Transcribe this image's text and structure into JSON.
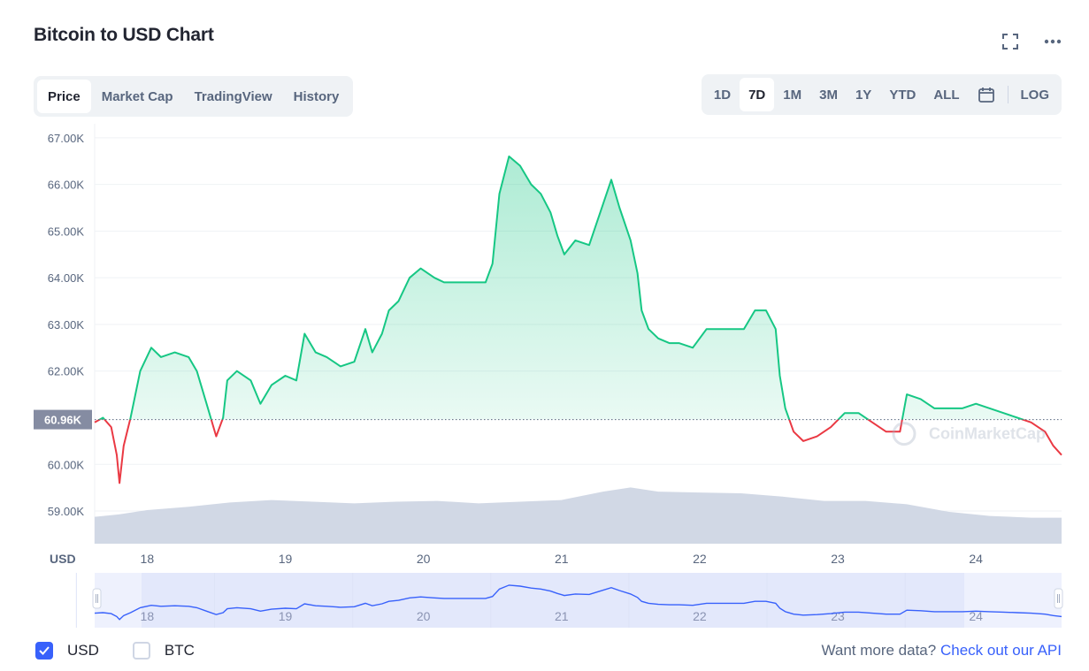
{
  "title": "Bitcoin to USD Chart",
  "tabs": [
    {
      "label": "Price",
      "active": true
    },
    {
      "label": "Market Cap",
      "active": false
    },
    {
      "label": "TradingView",
      "active": false
    },
    {
      "label": "History",
      "active": false
    }
  ],
  "ranges": [
    {
      "label": "1D",
      "active": false
    },
    {
      "label": "7D",
      "active": true
    },
    {
      "label": "1M",
      "active": false
    },
    {
      "label": "3M",
      "active": false
    },
    {
      "label": "1Y",
      "active": false
    },
    {
      "label": "YTD",
      "active": false
    },
    {
      "label": "ALL",
      "active": false
    }
  ],
  "log_label": "LOG",
  "icons": {
    "fullscreen": "fullscreen-icon",
    "more": "more-horizontal-icon",
    "calendar": "calendar-icon"
  },
  "colors": {
    "up": "#16c784",
    "down": "#ea3943",
    "volume": "#cfd6e4",
    "brush": "#3861fb",
    "accent": "#3861fb"
  },
  "chart_data": {
    "type": "area",
    "ylim": [
      58300,
      67300
    ],
    "yticks": [
      "67.00K",
      "66.00K",
      "65.00K",
      "64.00K",
      "63.00K",
      "62.00K",
      "60.00K",
      "59.00K"
    ],
    "ytick_values": [
      67000,
      66000,
      65000,
      64000,
      63000,
      62000,
      60000,
      59000
    ],
    "baseline": 60960,
    "baseline_label": "60.96K",
    "xlim": [
      17.62,
      24.62
    ],
    "x_unit": "day",
    "xticks": [
      "18",
      "19",
      "20",
      "21",
      "22",
      "23",
      "24"
    ],
    "xtick_values": [
      18,
      19,
      20,
      21,
      22,
      23,
      24
    ],
    "currency_label": "USD",
    "watermark": "CoinMarketCap",
    "price_points": [
      [
        17.62,
        60900
      ],
      [
        17.68,
        61000
      ],
      [
        17.74,
        60800
      ],
      [
        17.78,
        60200
      ],
      [
        17.8,
        59600
      ],
      [
        17.83,
        60400
      ],
      [
        17.88,
        61000
      ],
      [
        17.95,
        62000
      ],
      [
        18.03,
        62500
      ],
      [
        18.1,
        62300
      ],
      [
        18.2,
        62400
      ],
      [
        18.3,
        62300
      ],
      [
        18.36,
        62000
      ],
      [
        18.43,
        61300
      ],
      [
        18.5,
        60600
      ],
      [
        18.55,
        61000
      ],
      [
        18.58,
        61800
      ],
      [
        18.65,
        62000
      ],
      [
        18.75,
        61800
      ],
      [
        18.82,
        61300
      ],
      [
        18.9,
        61700
      ],
      [
        19.0,
        61900
      ],
      [
        19.08,
        61800
      ],
      [
        19.14,
        62800
      ],
      [
        19.22,
        62400
      ],
      [
        19.3,
        62300
      ],
      [
        19.4,
        62100
      ],
      [
        19.5,
        62200
      ],
      [
        19.58,
        62900
      ],
      [
        19.63,
        62400
      ],
      [
        19.7,
        62800
      ],
      [
        19.75,
        63300
      ],
      [
        19.82,
        63500
      ],
      [
        19.9,
        64000
      ],
      [
        19.98,
        64200
      ],
      [
        20.08,
        64000
      ],
      [
        20.15,
        63900
      ],
      [
        20.25,
        63900
      ],
      [
        20.35,
        63900
      ],
      [
        20.45,
        63900
      ],
      [
        20.5,
        64300
      ],
      [
        20.55,
        65800
      ],
      [
        20.62,
        66600
      ],
      [
        20.7,
        66400
      ],
      [
        20.78,
        66000
      ],
      [
        20.85,
        65800
      ],
      [
        20.92,
        65400
      ],
      [
        20.97,
        64900
      ],
      [
        21.02,
        64500
      ],
      [
        21.1,
        64800
      ],
      [
        21.2,
        64700
      ],
      [
        21.28,
        65400
      ],
      [
        21.36,
        66100
      ],
      [
        21.42,
        65500
      ],
      [
        21.5,
        64800
      ],
      [
        21.55,
        64100
      ],
      [
        21.58,
        63300
      ],
      [
        21.63,
        62900
      ],
      [
        21.7,
        62700
      ],
      [
        21.78,
        62600
      ],
      [
        21.85,
        62600
      ],
      [
        21.95,
        62500
      ],
      [
        22.05,
        62900
      ],
      [
        22.15,
        62900
      ],
      [
        22.25,
        62900
      ],
      [
        22.32,
        62900
      ],
      [
        22.4,
        63300
      ],
      [
        22.48,
        63300
      ],
      [
        22.55,
        62900
      ],
      [
        22.58,
        61900
      ],
      [
        22.62,
        61200
      ],
      [
        22.68,
        60700
      ],
      [
        22.75,
        60500
      ],
      [
        22.85,
        60600
      ],
      [
        22.95,
        60800
      ],
      [
        23.05,
        61100
      ],
      [
        23.15,
        61100
      ],
      [
        23.25,
        60900
      ],
      [
        23.35,
        60700
      ],
      [
        23.45,
        60700
      ],
      [
        23.5,
        61500
      ],
      [
        23.6,
        61400
      ],
      [
        23.7,
        61200
      ],
      [
        23.8,
        61200
      ],
      [
        23.9,
        61200
      ],
      [
        24.0,
        61300
      ],
      [
        24.1,
        61200
      ],
      [
        24.2,
        61100
      ],
      [
        24.3,
        61000
      ],
      [
        24.4,
        60900
      ],
      [
        24.5,
        60700
      ],
      [
        24.56,
        60400
      ],
      [
        24.62,
        60200
      ]
    ],
    "volume_relative": [
      [
        17.62,
        0.32
      ],
      [
        17.8,
        0.35
      ],
      [
        18.0,
        0.4
      ],
      [
        18.3,
        0.44
      ],
      [
        18.6,
        0.49
      ],
      [
        18.9,
        0.52
      ],
      [
        19.2,
        0.5
      ],
      [
        19.5,
        0.48
      ],
      [
        19.8,
        0.5
      ],
      [
        20.1,
        0.51
      ],
      [
        20.4,
        0.48
      ],
      [
        20.7,
        0.5
      ],
      [
        21.0,
        0.52
      ],
      [
        21.3,
        0.62
      ],
      [
        21.5,
        0.67
      ],
      [
        21.7,
        0.62
      ],
      [
        22.0,
        0.61
      ],
      [
        22.3,
        0.6
      ],
      [
        22.6,
        0.56
      ],
      [
        22.9,
        0.51
      ],
      [
        23.2,
        0.51
      ],
      [
        23.5,
        0.47
      ],
      [
        23.8,
        0.38
      ],
      [
        24.1,
        0.33
      ],
      [
        24.4,
        0.31
      ],
      [
        24.62,
        0.31
      ]
    ],
    "brush_xticks": [
      "18",
      "19",
      "20",
      "21",
      "22",
      "23",
      "24"
    ]
  },
  "footer": {
    "usd_label": "USD",
    "usd_checked": true,
    "btc_label": "BTC",
    "btc_checked": false,
    "api_prefix": "Want more data?",
    "api_link": "Check out our API"
  }
}
